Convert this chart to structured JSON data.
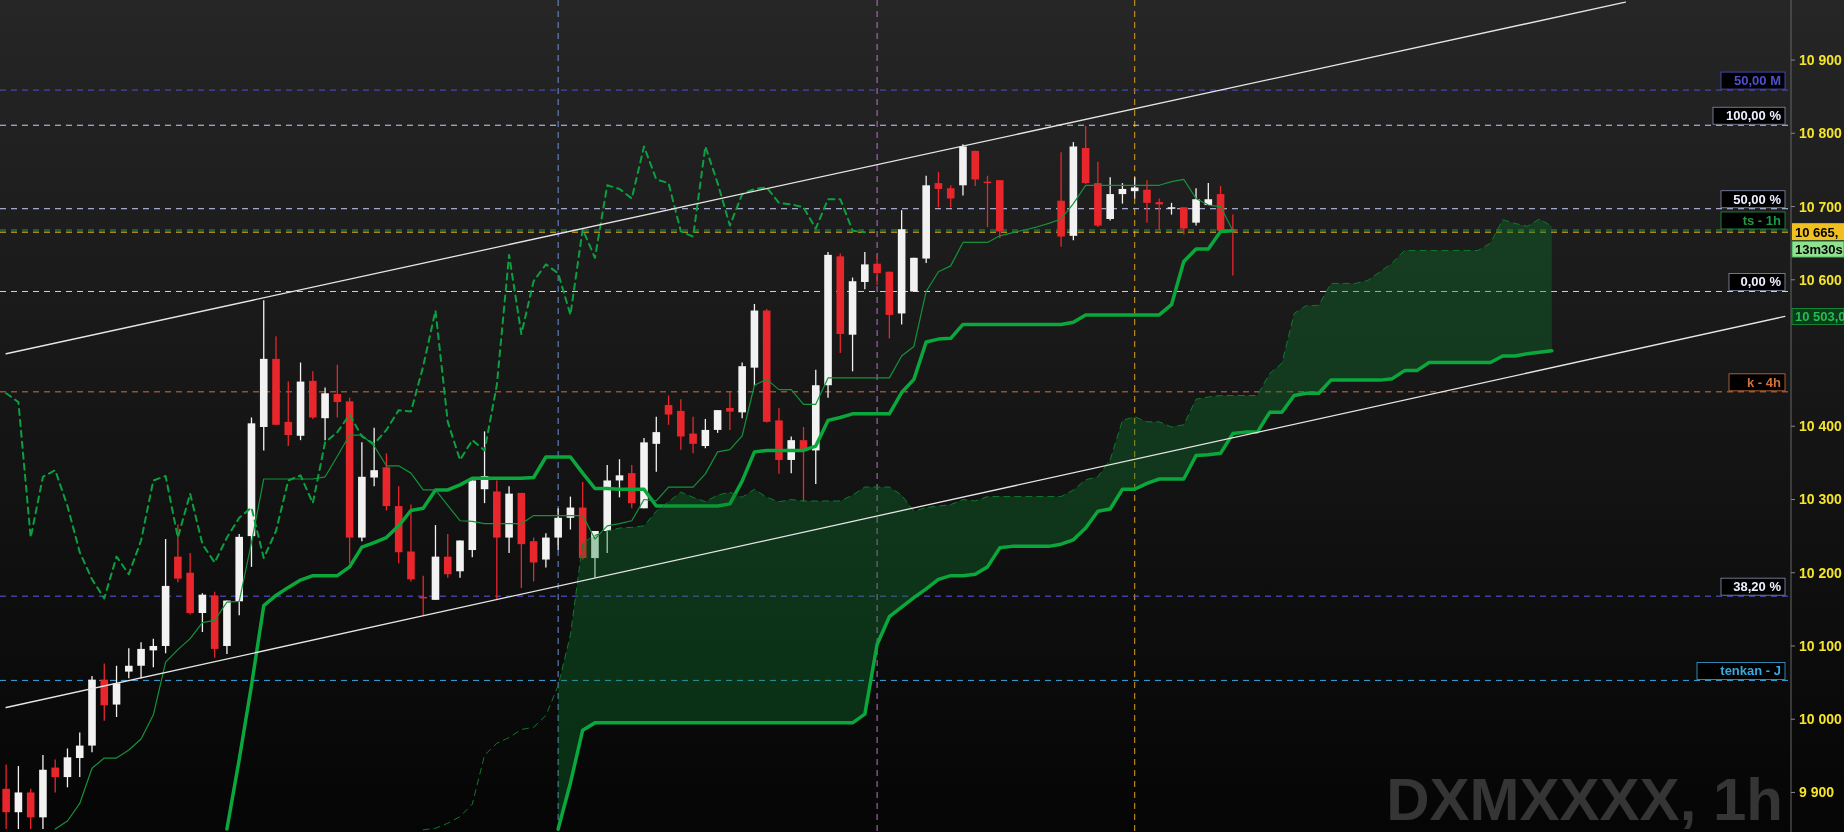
{
  "chart_data": {
    "type": "candlestick",
    "title": "DXMXXXX, 1h",
    "categories": [
      null,
      null,
      null,
      null,
      null,
      null,
      null,
      null,
      null,
      null,
      null,
      null,
      null,
      null,
      null,
      null,
      null,
      null,
      null,
      null,
      null,
      null,
      null,
      null,
      null,
      null,
      null,
      null,
      null,
      null,
      null,
      null,
      null,
      null,
      null,
      null,
      null,
      null,
      null,
      null,
      null,
      null,
      null,
      null,
      null,
      null,
      null,
      null,
      null,
      null,
      null,
      null,
      null,
      null,
      null,
      null,
      null,
      null,
      null,
      null,
      null,
      null,
      null,
      null,
      null,
      null,
      null,
      null,
      null,
      null,
      null,
      null,
      null,
      null,
      null,
      null,
      null,
      null,
      null,
      null,
      null,
      null,
      null,
      null,
      null,
      null,
      null,
      null,
      null,
      null,
      null,
      null,
      null,
      null,
      null,
      null,
      null,
      null,
      null,
      null,
      null,
      null,
      null,
      null,
      null,
      null,
      null,
      null,
      null,
      null,
      null,
      null,
      null,
      null,
      null,
      null,
      null,
      null,
      null,
      null,
      null,
      null,
      null,
      null,
      null,
      null,
      null,
      null,
      null,
      null,
      null,
      null,
      null,
      null,
      null,
      null,
      null,
      null,
      null,
      null,
      null,
      null,
      null,
      null,
      null,
      null
    ],
    "ylim": [
      9846,
      10982
    ],
    "yticks": [
      9900,
      10000,
      10100,
      10200,
      10300,
      10400,
      10600,
      10700,
      10800,
      10900
    ],
    "series": [
      {
        "ohlc": [
          [
            9905,
            9938,
            9850,
            9873
          ],
          [
            9873,
            9936,
            9850,
            9900
          ],
          [
            9900,
            9905,
            9850,
            9866
          ],
          [
            9866,
            9951,
            9850,
            9931
          ],
          [
            9934,
            9945,
            9900,
            9921
          ],
          [
            9921,
            9960,
            9907,
            9948
          ],
          [
            9947,
            9982,
            9921,
            9964
          ],
          [
            9964,
            10059,
            9955,
            10054
          ],
          [
            10054,
            10076,
            9998,
            10019
          ],
          [
            10020,
            10073,
            10003,
            10049
          ],
          [
            10065,
            10097,
            10056,
            10073
          ],
          [
            10073,
            10105,
            10056,
            10096
          ],
          [
            10094,
            10110,
            10071,
            10100
          ],
          [
            10100,
            10246,
            10090,
            10182
          ],
          [
            10222,
            10266,
            10187,
            10192
          ],
          [
            10200,
            10227,
            10143,
            10145
          ],
          [
            10145,
            10172,
            10119,
            10170
          ],
          [
            10169,
            10174,
            10084,
            10096
          ],
          [
            10100,
            10162,
            10089,
            10162
          ],
          [
            10161,
            10253,
            10142,
            10249
          ],
          [
            10250,
            10412,
            10208,
            10404
          ],
          [
            10399,
            10572,
            10367,
            10492
          ],
          [
            10492,
            10523,
            10402,
            10402
          ],
          [
            10406,
            10461,
            10373,
            10388
          ],
          [
            10387,
            10487,
            10381,
            10461
          ],
          [
            10462,
            10475,
            10410,
            10412
          ],
          [
            10411,
            10453,
            10381,
            10445
          ],
          [
            10444,
            10484,
            10412,
            10433
          ],
          [
            10434,
            10439,
            10213,
            10248
          ],
          [
            10248,
            10378,
            10243,
            10331
          ],
          [
            10330,
            10398,
            10318,
            10340
          ],
          [
            10344,
            10363,
            10285,
            10291
          ],
          [
            10291,
            10318,
            10213,
            10228
          ],
          [
            10229,
            10293,
            10188,
            10191
          ],
          [
            10167,
            10196,
            10142,
            10165
          ],
          [
            10163,
            10265,
            10163,
            10222
          ],
          [
            10222,
            10253,
            10193,
            10198
          ],
          [
            10202,
            10244,
            10193,
            10244
          ],
          [
            10231,
            10326,
            10221,
            10326
          ],
          [
            10314,
            10393,
            10295,
            10332
          ],
          [
            10311,
            10326,
            10164,
            10248
          ],
          [
            10248,
            10318,
            10227,
            10308
          ],
          [
            10309,
            10309,
            10179,
            10239
          ],
          [
            10243,
            10248,
            10188,
            10214
          ],
          [
            10218,
            10254,
            10207,
            10248
          ],
          [
            10248,
            10288,
            10231,
            10275
          ],
          [
            10275,
            10304,
            10259,
            10289
          ],
          [
            10289,
            10324,
            10218,
            10220
          ],
          [
            10220,
            10257,
            10193,
            10257
          ],
          [
            10257,
            10347,
            10227,
            10326
          ],
          [
            10326,
            10355,
            10303,
            10333
          ],
          [
            10336,
            10347,
            10288,
            10295
          ],
          [
            10288,
            10384,
            10288,
            10378
          ],
          [
            10376,
            10413,
            10338,
            10392
          ],
          [
            10429,
            10442,
            10402,
            10416
          ],
          [
            10421,
            10437,
            10368,
            10386
          ],
          [
            10390,
            10413,
            10363,
            10376
          ],
          [
            10373,
            10410,
            10370,
            10395
          ],
          [
            10395,
            10422,
            10391,
            10422
          ],
          [
            10425,
            10447,
            10395,
            10420
          ],
          [
            10419,
            10487,
            10411,
            10482
          ],
          [
            10480,
            10567,
            10455,
            10558
          ],
          [
            10558,
            10560,
            10405,
            10406
          ],
          [
            10408,
            10425,
            10335,
            10354
          ],
          [
            10354,
            10386,
            10336,
            10381
          ],
          [
            10381,
            10399,
            10297,
            10367
          ],
          [
            10367,
            10477,
            10321,
            10456
          ],
          [
            10456,
            10638,
            10439,
            10634
          ],
          [
            10632,
            10636,
            10500,
            10526
          ],
          [
            10525,
            10603,
            10475,
            10598
          ],
          [
            10597,
            10638,
            10587,
            10621
          ],
          [
            10622,
            10634,
            10593,
            10609
          ],
          [
            10611,
            10611,
            10520,
            10552
          ],
          [
            10554,
            10695,
            10539,
            10669
          ],
          [
            10584,
            10630,
            10584,
            10630
          ],
          [
            10629,
            10742,
            10623,
            10729
          ],
          [
            10732,
            10747,
            10699,
            10724
          ],
          [
            10725,
            10729,
            10699,
            10711
          ],
          [
            10729,
            10785,
            10715,
            10782
          ],
          [
            10776,
            10776,
            10728,
            10737
          ],
          [
            10734,
            10742,
            10672,
            10732
          ],
          [
            10736,
            10736,
            10657,
            10666
          ],
          null,
          null,
          null,
          null,
          [
            10708,
            10774,
            10645,
            10659
          ],
          [
            10660,
            10788,
            10654,
            10782
          ],
          [
            10780,
            10810,
            10731,
            10732
          ],
          [
            10732,
            10761,
            10672,
            10674
          ],
          [
            10683,
            10740,
            10681,
            10717
          ],
          [
            10717,
            10732,
            10704,
            10724
          ],
          [
            10721,
            10740,
            10711,
            10726
          ],
          [
            10723,
            10736,
            10678,
            10705
          ],
          [
            10706,
            10711,
            10668,
            10703
          ],
          [
            10697,
            10705,
            10689,
            10699
          ],
          [
            10699,
            10699,
            10662,
            10670
          ],
          [
            10678,
            10725,
            10674,
            10710
          ],
          [
            10702,
            10732,
            10702,
            10710
          ],
          [
            10717,
            10728,
            10666,
            10667
          ],
          [
            10669,
            10689,
            10606,
            10665
          ],
          null,
          null,
          null,
          null,
          null,
          null,
          null,
          null,
          null,
          null,
          null,
          null,
          null,
          null,
          null,
          null,
          null,
          null,
          null,
          null,
          null,
          null,
          null,
          null,
          null,
          null,
          null,
          null,
          null,
          null,
          null,
          null,
          null,
          null,
          null,
          null,
          null,
          null,
          null,
          null,
          null,
          null,
          null,
          null,
          null
        ],
        "colors": [
          "#e8262b",
          "#f2f2f2",
          "#e8262b",
          "#f2f2f2",
          "#e8262b",
          "#f2f2f2",
          "#f2f2f2",
          "#f2f2f2",
          "#e8262b",
          "#f2f2f2",
          "#f2f2f2",
          "#f2f2f2",
          "#f2f2f2",
          "#f2f2f2",
          "#e8262b",
          "#e8262b",
          "#f2f2f2",
          "#e8262b",
          "#f2f2f2",
          "#f2f2f2",
          "#f2f2f2",
          "#f2f2f2",
          "#e8262b",
          "#e8262b",
          "#f2f2f2",
          "#e8262b",
          "#f2f2f2",
          "#e8262b",
          "#e8262b",
          "#f2f2f2",
          "#f2f2f2",
          "#e8262b",
          "#e8262b",
          "#e8262b",
          "#e8262b",
          "#f2f2f2",
          "#e8262b",
          "#f2f2f2",
          "#f2f2f2",
          "#f2f2f2",
          "#e8262b",
          "#f2f2f2",
          "#e8262b",
          "#e8262b",
          "#f2f2f2",
          "#f2f2f2",
          "#f2f2f2",
          "#e8262b",
          "#f2f2f2",
          "#f2f2f2",
          "#f2f2f2",
          "#e8262b",
          "#f2f2f2",
          "#f2f2f2",
          "#e8262b",
          "#e8262b",
          "#e8262b",
          "#f2f2f2",
          "#f2f2f2",
          "#e8262b",
          "#f2f2f2",
          "#f2f2f2",
          "#e8262b",
          "#e8262b",
          "#f2f2f2",
          "#e8262b",
          "#f2f2f2",
          "#f2f2f2",
          "#e8262b",
          "#f2f2f2",
          "#f2f2f2",
          "#e8262b",
          "#e8262b",
          "#f2f2f2",
          "#f2f2f2",
          "#f2f2f2",
          "#e8262b",
          "#e8262b",
          "#f2f2f2",
          "#e8262b",
          "#e8262b",
          "#e8262b",
          null,
          null,
          null,
          null,
          "#e8262b",
          "#f2f2f2",
          "#e8262b",
          "#e8262b",
          "#f2f2f2",
          "#f2f2f2",
          "#f2f2f2",
          "#e8262b",
          "#e8262b",
          "#f2f2f2",
          "#e8262b",
          "#f2f2f2",
          "#f2f2f2",
          "#e8262b",
          "#e8262b",
          null,
          null,
          null,
          null,
          null,
          null,
          null,
          null,
          null,
          null,
          null,
          null,
          null,
          null,
          null,
          null,
          null,
          null,
          null,
          null,
          null,
          null,
          null,
          null,
          null,
          null,
          null,
          null,
          null,
          null,
          null,
          null,
          null,
          null,
          null,
          null,
          null,
          null,
          null,
          null,
          null,
          null,
          null,
          null,
          null
        ]
      },
      {
        "type": "line",
        "color": "#0aa83c",
        "values": [
          null,
          null,
          null,
          null,
          null,
          null,
          null,
          null,
          null,
          null,
          null,
          null,
          null,
          null,
          null,
          null,
          null,
          null,
          9850,
          9945,
          10046,
          10155,
          10169,
          10180,
          10190,
          10196,
          10196,
          10196,
          10208,
          10235,
          10241,
          10248,
          10264,
          10285,
          10288,
          10313,
          10313,
          10320,
          10329,
          10329,
          10329,
          10329,
          10329,
          10330,
          10358,
          10358,
          10358,
          10336,
          10315,
          10315,
          10314,
          10314,
          10314,
          10291,
          10291,
          10291,
          10291,
          10291,
          10291,
          10294,
          10325,
          10365,
          10367,
          10367,
          10367,
          10367,
          10373,
          10408,
          10412,
          10417,
          10417,
          10417,
          10417,
          10446,
          10464,
          10515,
          10519,
          10520,
          10539,
          10539,
          10539,
          10539,
          10539,
          10539,
          10539,
          10539,
          10539,
          10542,
          10552,
          10552,
          10552,
          10552,
          10552,
          10552,
          10552,
          10566,
          10625,
          10642,
          10642,
          10666,
          10667,
          null,
          null,
          null,
          null,
          null,
          null,
          null,
          null,
          null,
          null,
          null,
          null,
          null,
          null,
          null,
          null,
          null,
          null,
          null,
          null,
          null,
          null,
          null,
          null,
          null,
          null,
          null,
          null,
          null,
          null,
          null,
          null,
          null,
          null,
          null,
          null,
          null,
          null,
          null,
          null,
          null,
          null,
          null,
          null,
          null
        ]
      },
      {
        "type": "line",
        "color": "#14923a",
        "values": [
          null,
          null,
          null,
          null,
          9850,
          9861,
          9885,
          9933,
          9947,
          9947,
          9958,
          9973,
          10006,
          10078,
          10095,
          10110,
          10132,
          10135,
          10160,
          10161,
          10241,
          10328,
          10328,
          10328,
          10328,
          10328,
          10331,
          10359,
          10388,
          10388,
          10373,
          10346,
          10346,
          10336,
          10313,
          10313,
          10292,
          10271,
          10270,
          10267,
          10267,
          10267,
          10267,
          10278,
          10278,
          10278,
          10278,
          10278,
          10246,
          10264,
          10267,
          10271,
          10300,
          10298,
          10317,
          10317,
          10317,
          10335,
          10365,
          10368,
          10387,
          10456,
          10464,
          10450,
          10450,
          10430,
          10430,
          10466,
          10466,
          10466,
          10466,
          10466,
          10466,
          10496,
          10509,
          10584,
          10611,
          10619,
          10651,
          10651,
          10651,
          10660,
          10664,
          10668,
          10672,
          10677,
          10683,
          10704,
          10729,
          10729,
          10729,
          10729,
          10729,
          10729,
          10729,
          10734,
          10737,
          10711,
          10702,
          10700,
          10667,
          null,
          null,
          null,
          null,
          null,
          null,
          null,
          null,
          null,
          null,
          null,
          null,
          null,
          null,
          null,
          null,
          null,
          null,
          null,
          null,
          null,
          null,
          null,
          null,
          null,
          null,
          null,
          null,
          null,
          null,
          null,
          null,
          null,
          null,
          null,
          null,
          null,
          null,
          null,
          null,
          null,
          null,
          null,
          null,
          null
        ]
      },
      {
        "type": "line",
        "color": "#0aa040",
        "line_style": "dashed",
        "values": [
          10445,
          10433,
          10248,
          10331,
          10340,
          10291,
          10228,
          10191,
          10165,
          10222,
          10198,
          10244,
          10326,
          10332,
          10248,
          10308,
          10239,
          10214,
          10248,
          10275,
          10289,
          10220,
          10257,
          10326,
          10333,
          10295,
          10378,
          10392,
          10416,
          10386,
          10376,
          10395,
          10422,
          10420,
          10482,
          10558,
          10406,
          10354,
          10381,
          10367,
          10456,
          10634,
          10526,
          10598,
          10621,
          10609,
          10552,
          10669,
          10630,
          10729,
          10724,
          10711,
          10782,
          10737,
          10732,
          10666,
          10659,
          10782,
          10732,
          10674,
          10717,
          10724,
          10726,
          10705,
          10703,
          10699,
          10670,
          10710,
          10710,
          10667,
          10665,
          null,
          null,
          null,
          null,
          null,
          null,
          null,
          null,
          null,
          null,
          null,
          null,
          null,
          null,
          null,
          null,
          null,
          null,
          null,
          null,
          null,
          null,
          null,
          null,
          null,
          null,
          null,
          null,
          null,
          null,
          null,
          null,
          null,
          null,
          null,
          null,
          null,
          null,
          null,
          null,
          null,
          null,
          null,
          null,
          null,
          null,
          null,
          null,
          null,
          null,
          null,
          null,
          null,
          null,
          null,
          null,
          null,
          null,
          null,
          null,
          null,
          null,
          null,
          null,
          null,
          null,
          null,
          null,
          null,
          null,
          null,
          null,
          null,
          null,
          null
        ]
      },
      {
        "type": "line",
        "color": "#0c7a2c",
        "line_style": "dashed",
        "values": [
          null,
          null,
          null,
          null,
          null,
          null,
          null,
          null,
          null,
          null,
          null,
          null,
          null,
          null,
          null,
          null,
          null,
          null,
          null,
          null,
          null,
          null,
          null,
          null,
          null,
          null,
          null,
          null,
          null,
          null,
          null,
          null,
          null,
          null,
          9849,
          9851,
          9858,
          9867,
          9884,
          9951,
          9967,
          9975,
          9986,
          9989,
          10005,
          10046,
          10115,
          10241,
          10251,
          10257,
          10261,
          10262,
          10264,
          10284,
          10297,
          10310,
          10303,
          10297,
          10306,
          10310,
          10303,
          10314,
          10303,
          10297,
          10300,
          10298,
          10298,
          10298,
          10298,
          10306,
          10317,
          10317,
          10317,
          10306,
          10284,
          10289,
          10291,
          10293,
          10300,
          10298,
          10304,
          10304,
          10304,
          10304,
          10304,
          10304,
          10304,
          10313,
          10327,
          10331,
          10354,
          10408,
          10413,
          10406,
          10406,
          10399,
          10402,
          10437,
          10440,
          10442,
          10442,
          10442,
          10442,
          10472,
          10486,
          10554,
          10565,
          10565,
          10595,
          10595,
          10595,
          10599,
          10611,
          10623,
          10640,
          10640,
          10640,
          10640,
          10640,
          10640,
          10640,
          10650,
          10682,
          10677,
          10673,
          10683,
          10673,
          null,
          null,
          null,
          null,
          null,
          null,
          null,
          null,
          null,
          null,
          null,
          null,
          null,
          null,
          null,
          null,
          null,
          null,
          null
        ],
        "upper": [
          null,
          null,
          null,
          null,
          null,
          null,
          null,
          null,
          null,
          null,
          null,
          null,
          null,
          null,
          null,
          null,
          null,
          null,
          null,
          null,
          null,
          null,
          null,
          null,
          null,
          null,
          null,
          null,
          null,
          null,
          null,
          null,
          null,
          null,
          null,
          null,
          null,
          null,
          null,
          null,
          null,
          null,
          null,
          null,
          null,
          10046,
          10115,
          10241,
          10251,
          10257,
          10261,
          10262,
          10264,
          10284,
          10297,
          10310,
          10303,
          10297,
          10306,
          10310,
          10303,
          10314,
          10303,
          10297,
          10300,
          10298,
          10298,
          10298,
          10298,
          10306,
          10317,
          10317,
          10317,
          10306,
          10284,
          10289,
          10291,
          10293,
          10300,
          10298,
          10304,
          10304,
          10304,
          10304,
          10304,
          10304,
          10304,
          10313,
          10327,
          10331,
          10354,
          10408,
          10413,
          10406,
          10406,
          10399,
          10402,
          10437,
          10440,
          10442,
          10442,
          10442,
          10442,
          10472,
          10486,
          10554,
          10565,
          10565,
          10595,
          10595,
          10595,
          10599,
          10611,
          10623,
          10640,
          10640,
          10640,
          10640,
          10640,
          10640,
          10640,
          10650,
          10682,
          10677,
          10673,
          10683,
          10673,
          null,
          null,
          null,
          null,
          null,
          null,
          null,
          null,
          null,
          null,
          null,
          null,
          null,
          null,
          null,
          null,
          null,
          null,
          null
        ],
        "lower": [
          null,
          null,
          null,
          null,
          null,
          null,
          null,
          null,
          null,
          null,
          null,
          null,
          null,
          null,
          null,
          null,
          null,
          null,
          null,
          null,
          null,
          null,
          null,
          null,
          null,
          null,
          null,
          null,
          null,
          null,
          null,
          null,
          null,
          null,
          null,
          null,
          null,
          null,
          null,
          null,
          null,
          null,
          null,
          null,
          null,
          9850,
          9913,
          9985,
          9995,
          9995,
          9995,
          9995,
          9995,
          9995,
          9995,
          9995,
          9995,
          9995,
          9995,
          9995,
          9995,
          9995,
          9995,
          9995,
          9995,
          9995,
          9995,
          9995,
          9995,
          9995,
          10007,
          10102,
          10140,
          10153,
          10166,
          10178,
          10191,
          10196,
          10196,
          10198,
          10208,
          10234,
          10236,
          10236,
          10236,
          10236,
          10239,
          10245,
          10261,
          10284,
          10287,
          10314,
          10314,
          10322,
          10328,
          10328,
          10328,
          10360,
          10361,
          10363,
          10390,
          10392,
          10392,
          10419,
          10419,
          10442,
          10445,
          10445,
          10463,
          10463,
          10463,
          10463,
          10463,
          10465,
          10476,
          10476,
          10487,
          10487,
          10487,
          10487,
          10487,
          10487,
          10496,
          10496,
          10499,
          10501,
          10503,
          null,
          null,
          null,
          null,
          null,
          null,
          null,
          null,
          null,
          null,
          null,
          null,
          null,
          null,
          null,
          null,
          null,
          null,
          null
        ]
      },
      {
        "type": "line",
        "color": "#0aa83c",
        "values": [
          null,
          null,
          null,
          null,
          null,
          null,
          null,
          null,
          null,
          null,
          null,
          null,
          null,
          null,
          null,
          null,
          null,
          null,
          null,
          null,
          null,
          null,
          null,
          null,
          null,
          null,
          null,
          null,
          null,
          null,
          null,
          null,
          null,
          null,
          null,
          null,
          null,
          null,
          null,
          null,
          null,
          null,
          null,
          null,
          null,
          9850,
          9913,
          9985,
          9995,
          9995,
          9995,
          9995,
          9995,
          9995,
          9995,
          9995,
          9995,
          9995,
          9995,
          9995,
          9995,
          9995,
          9995,
          9995,
          9995,
          9995,
          9995,
          9995,
          9995,
          9995,
          10007,
          10102,
          10140,
          10153,
          10166,
          10178,
          10191,
          10196,
          10196,
          10198,
          10208,
          10234,
          10236,
          10236,
          10236,
          10236,
          10239,
          10245,
          10261,
          10284,
          10287,
          10314,
          10314,
          10322,
          10328,
          10328,
          10328,
          10360,
          10361,
          10363,
          10390,
          10392,
          10392,
          10419,
          10419,
          10442,
          10445,
          10445,
          10463,
          10463,
          10463,
          10463,
          10463,
          10465,
          10476,
          10476,
          10487,
          10487,
          10487,
          10487,
          10487,
          10487,
          10496,
          10496,
          10499,
          10501,
          10503,
          null,
          null,
          null,
          null,
          null,
          null,
          null,
          null,
          null,
          null,
          null,
          null,
          null,
          null,
          null,
          null,
          null,
          null,
          null
        ]
      },
      {
        "type": "line",
        "color": "#e6e6e6",
        "values": [
          10499,
          null,
          null,
          null,
          null,
          null,
          null,
          null,
          null,
          null,
          null,
          null,
          null,
          null,
          null,
          null,
          null,
          null,
          null,
          null,
          null,
          null,
          null,
          null,
          null,
          null,
          null,
          null,
          null,
          null,
          null,
          null,
          null,
          null,
          null,
          null,
          null,
          null,
          null,
          null,
          null,
          null,
          null,
          null,
          null,
          null,
          null,
          null,
          null,
          null,
          null,
          null,
          null,
          null,
          null,
          null,
          null,
          null,
          null,
          null,
          null,
          null,
          null,
          null,
          null,
          null,
          null,
          null,
          null,
          null,
          null,
          null,
          null,
          null,
          null,
          null,
          null,
          null,
          null,
          null,
          null,
          null,
          null,
          null,
          null,
          null,
          null,
          null,
          null,
          null,
          null,
          null,
          null,
          null,
          null,
          null,
          null,
          null,
          null,
          null,
          null,
          null,
          null,
          null,
          null,
          null,
          null,
          null,
          null,
          null,
          null,
          null,
          null,
          null,
          null,
          null,
          null,
          null,
          null,
          null,
          null,
          null,
          null,
          null,
          null,
          null,
          null,
          null,
          null,
          null,
          null,
          null,
          10979,
          null,
          null,
          null,
          null,
          null,
          null,
          null,
          null,
          null,
          null,
          null,
          null,
          null
        ]
      },
      {
        "type": "line",
        "color": "#e6e6e6",
        "values": [
          10016,
          null,
          null,
          null,
          null,
          null,
          null,
          null,
          null,
          null,
          null,
          null,
          null,
          null,
          null,
          null,
          null,
          null,
          null,
          null,
          null,
          null,
          null,
          null,
          null,
          null,
          null,
          null,
          null,
          null,
          null,
          null,
          null,
          null,
          null,
          null,
          null,
          null,
          null,
          null,
          null,
          null,
          null,
          null,
          null,
          null,
          null,
          null,
          null,
          null,
          null,
          null,
          null,
          null,
          null,
          null,
          null,
          null,
          null,
          null,
          null,
          null,
          null,
          null,
          null,
          null,
          null,
          null,
          null,
          null,
          null,
          null,
          null,
          null,
          null,
          null,
          null,
          null,
          null,
          null,
          null,
          null,
          null,
          null,
          null,
          null,
          null,
          null,
          null,
          null,
          null,
          null,
          null,
          null,
          null,
          null,
          null,
          null,
          null,
          null,
          null,
          null,
          null,
          null,
          null,
          null,
          null,
          null,
          null,
          null,
          null,
          null,
          null,
          null,
          null,
          null,
          null,
          null,
          null,
          null,
          null,
          null,
          null,
          null,
          null,
          null,
          null,
          null,
          null,
          null,
          null,
          null,
          null,
          null,
          null,
          null,
          null,
          null,
          null,
          null,
          null,
          null,
          null,
          null,
          null,
          10550
        ]
      }
    ],
    "ref_lines": [
      {
        "axis": "y",
        "value": 10859,
        "label": "50,00 M",
        "color": "#5050d0",
        "line_style": "dashed"
      },
      {
        "axis": "y",
        "value": 10811,
        "color": "#c8d0ff",
        "line_style": "dashed"
      },
      {
        "axis": "y",
        "value": 10697,
        "color": "#c8d0ff",
        "line_style": "dashed"
      },
      {
        "axis": "y",
        "value": 10668,
        "label": "ts - 1h",
        "color": "#1f9a40",
        "line_style": "dashed"
      },
      {
        "axis": "y",
        "value": 10584,
        "color": "#c8d0ff",
        "line_style": "dashed"
      },
      {
        "axis": "y",
        "value": 10447,
        "label": "k - 4h",
        "color": "#d0703a",
        "line_style": "dashed"
      },
      {
        "axis": "y",
        "value": 10168,
        "color": "#5a5ae8",
        "line_style": "dashed"
      },
      {
        "axis": "y",
        "value": 10053,
        "label": "tenkan - J",
        "color": "#3aa8e0",
        "line_style": "dashed"
      },
      {
        "axis": "y",
        "value": 10665,
        "label": "10 665,",
        "color": "#f0c020",
        "line_style": "dashed"
      }
    ],
    "annotations": [
      "13m30s",
      "10 503,0",
      {
        "text": "100,00 %",
        "y": 10811
      },
      {
        "text": "50,00 %",
        "y": 10697
      },
      {
        "text": "0,00 %",
        "y": 10584
      },
      {
        "text": "38,20 %",
        "y": 10168
      }
    ]
  }
}
